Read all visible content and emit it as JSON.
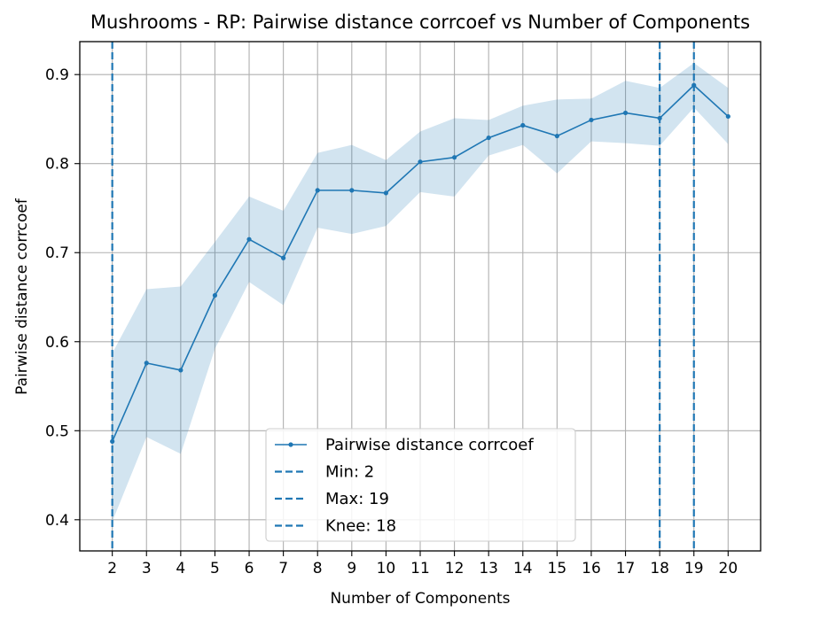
{
  "chart_data": {
    "type": "line",
    "title": "Mushrooms - RP: Pairwise distance corrcoef vs Number of Components",
    "xlabel": "Number of Components",
    "ylabel": "Pairwise distance corrcoef",
    "xlim": [
      1.05,
      20.95
    ],
    "ylim": [
      0.365,
      0.937
    ],
    "xticks": [
      2,
      3,
      4,
      5,
      6,
      7,
      8,
      9,
      10,
      11,
      12,
      13,
      14,
      15,
      16,
      17,
      18,
      19,
      20
    ],
    "yticks": [
      0.4,
      0.5,
      0.6,
      0.7,
      0.8,
      0.9
    ],
    "grid": true,
    "legend_position": "bottom-center",
    "series": [
      {
        "name": "Pairwise distance corrcoef",
        "color": "#1f77b4",
        "x": [
          2,
          3,
          4,
          5,
          6,
          7,
          8,
          9,
          10,
          11,
          12,
          13,
          14,
          15,
          16,
          17,
          18,
          19,
          20
        ],
        "y": [
          0.488,
          0.576,
          0.568,
          0.652,
          0.715,
          0.694,
          0.77,
          0.77,
          0.767,
          0.802,
          0.807,
          0.829,
          0.843,
          0.831,
          0.849,
          0.857,
          0.851,
          0.888,
          0.853
        ],
        "band_lower": [
          0.398,
          0.493,
          0.474,
          0.592,
          0.667,
          0.641,
          0.728,
          0.721,
          0.73,
          0.768,
          0.763,
          0.809,
          0.821,
          0.789,
          0.825,
          0.823,
          0.82,
          0.863,
          0.822
        ],
        "band_upper": [
          0.587,
          0.659,
          0.662,
          0.712,
          0.763,
          0.747,
          0.812,
          0.821,
          0.804,
          0.836,
          0.851,
          0.849,
          0.865,
          0.872,
          0.873,
          0.893,
          0.885,
          0.913,
          0.885
        ]
      }
    ],
    "vlines": [
      {
        "label": "Min: 2",
        "x": 2,
        "color": "#1f77b4"
      },
      {
        "label": "Max: 19",
        "x": 19,
        "color": "#1f77b4"
      },
      {
        "label": "Knee: 18",
        "x": 18,
        "color": "#1f77b4"
      }
    ]
  }
}
